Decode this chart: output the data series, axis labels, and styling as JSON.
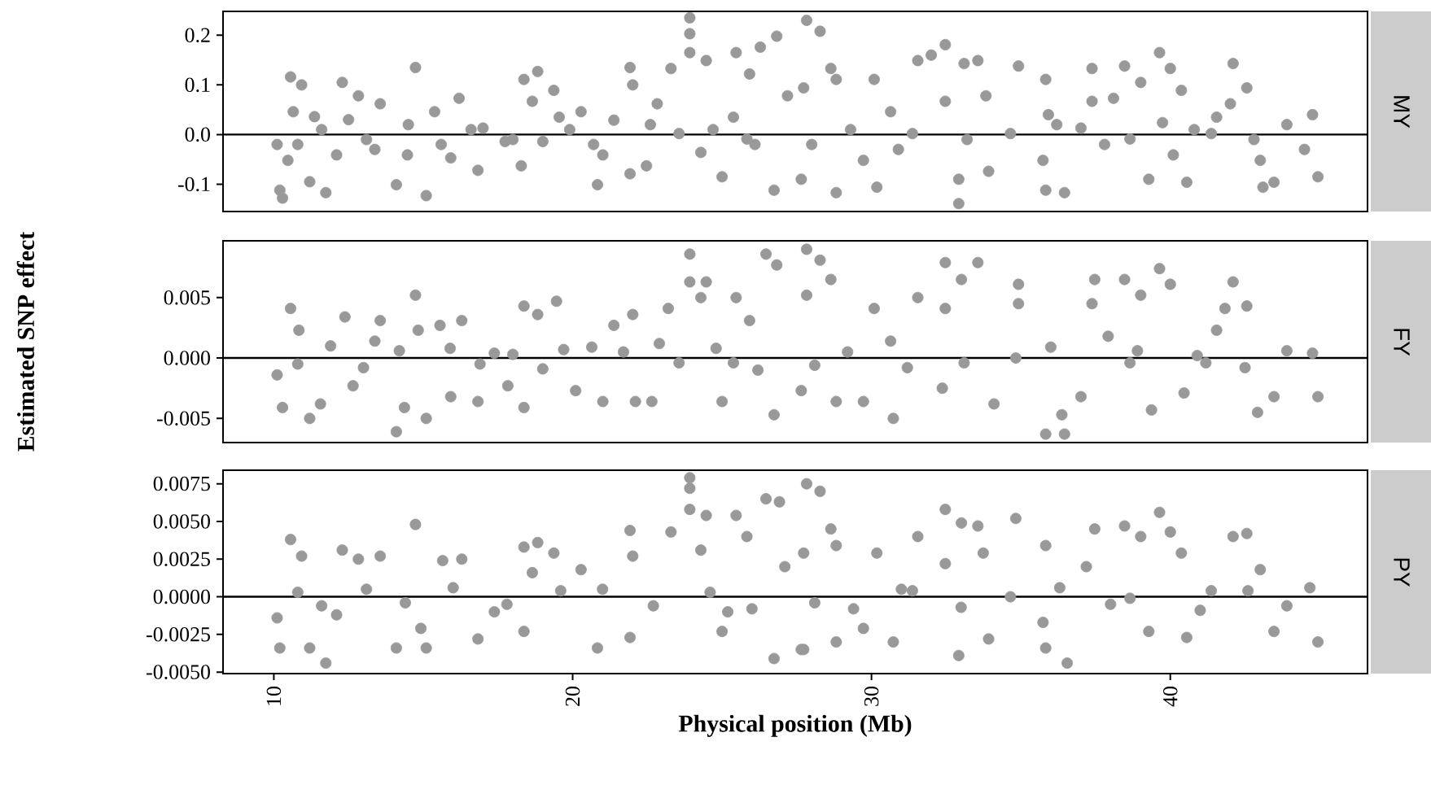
{
  "chart_data": [
    {
      "type": "scatter",
      "y2label": "MY",
      "color": "#999999",
      "marker": "circle",
      "grid": false,
      "tick_labels": "y",
      "xlim": [
        8.3,
        46.6
      ],
      "xticks": [
        10,
        20,
        30,
        40
      ],
      "ylim": [
        -0.155,
        0.248
      ],
      "yticks": [
        0.2,
        0.1,
        {
          "value": 0,
          "label": "0.0"
        },
        -0.1
      ],
      "ref_lines": [
        {
          "axis": "y",
          "value": 0,
          "color": "#000000"
        }
      ],
      "x": [
        10.56,
        10.93,
        10.2,
        10.29,
        11.2,
        11.74,
        10.65,
        11.36,
        10.47,
        10.11,
        12.29,
        12.83,
        12.1,
        13.38,
        13.56,
        14.74,
        14.1,
        15.1,
        14.47,
        15.38,
        16.2,
        16.83,
        15.92,
        17.0,
        17.74,
        18.28,
        18.37,
        18.83,
        19.37,
        18.65,
        19.55,
        19.0,
        20.28,
        20.83,
        21.38,
        21.92,
        22.01,
        21.92,
        21.01,
        22.47,
        22.83,
        23.29,
        23.92,
        23.92,
        23.92,
        24.47,
        24.29,
        25.0,
        25.47,
        25.92,
        26.28,
        26.83,
        26.74,
        27.65,
        27.83,
        28.28,
        27.19,
        25.38,
        23.56,
        25.83,
        28.64,
        28.82,
        27.73,
        28.82,
        30.18,
        30.09,
        30.64,
        29.73,
        31.55,
        32.47,
        32.0,
        33.1,
        33.56,
        32.47,
        32.92,
        32.92,
        33.92,
        33.83,
        34.92,
        35.83,
        35.92,
        35.83,
        36.46,
        35.74,
        37.38,
        38.47,
        37.38,
        38.1,
        39.01,
        39.64,
        40.0,
        40.37,
        39.28,
        40.55,
        40.1,
        42.1,
        42.56,
        42.01,
        43.1,
        43.47,
        43.01,
        44.76,
        44.94,
        44.49,
        41.37,
        38.65,
        37.01,
        34.65,
        31.37,
        41.55,
        39.74,
        10.8,
        11.6,
        12.5,
        13.1,
        14.5,
        15.6,
        16.6,
        18.0,
        19.9,
        20.7,
        22.6,
        24.7,
        26.1,
        28.0,
        29.3,
        30.9,
        33.2,
        36.2,
        37.8,
        40.8,
        42.8,
        43.9
      ],
      "values": [
        0.116,
        0.1,
        -0.112,
        -0.128,
        -0.095,
        -0.117,
        0.046,
        0.036,
        -0.052,
        -0.02,
        0.105,
        0.078,
        -0.041,
        -0.03,
        0.062,
        0.135,
        -0.101,
        -0.123,
        -0.041,
        0.046,
        0.073,
        -0.072,
        -0.047,
        0.013,
        -0.014,
        -0.063,
        0.111,
        0.127,
        0.089,
        0.067,
        0.035,
        -0.014,
        0.046,
        -0.101,
        0.029,
        0.135,
        0.1,
        -0.079,
        -0.041,
        -0.063,
        0.062,
        0.133,
        0.235,
        0.203,
        0.165,
        0.149,
        -0.036,
        -0.085,
        0.165,
        0.122,
        0.176,
        0.198,
        -0.112,
        -0.09,
        0.23,
        0.208,
        0.078,
        0.035,
        0.002,
        -0.009,
        0.133,
        0.111,
        0.094,
        -0.117,
        -0.106,
        0.111,
        0.046,
        -0.052,
        0.149,
        0.181,
        0.16,
        0.143,
        0.149,
        0.067,
        -0.139,
        -0.09,
        -0.074,
        0.078,
        0.138,
        0.111,
        0.04,
        -0.112,
        -0.117,
        -0.052,
        0.133,
        0.138,
        0.067,
        0.073,
        0.105,
        0.165,
        0.133,
        0.089,
        -0.09,
        -0.096,
        -0.041,
        0.143,
        0.094,
        0.062,
        -0.106,
        -0.096,
        -0.052,
        0.04,
        -0.085,
        -0.03,
        0.002,
        -0.009,
        0.013,
        0.002,
        0.002,
        0.035,
        0.024,
        -0.02,
        0.01,
        0.03,
        -0.01,
        0.02,
        -0.02,
        0.01,
        -0.01,
        0.01,
        -0.02,
        0.02,
        0.01,
        -0.02,
        -0.02,
        0.01,
        -0.03,
        -0.01,
        0.02,
        -0.02,
        0.01,
        -0.01,
        0.02
      ]
    },
    {
      "type": "scatter",
      "y2label": "FY",
      "ylabel": "Estimated SNP effect",
      "color": "#999999",
      "marker": "circle",
      "grid": false,
      "tick_labels": "y",
      "xlim": [
        8.3,
        46.6
      ],
      "xticks": [
        10,
        20,
        30,
        40
      ],
      "ylim": [
        -0.007,
        0.0097
      ],
      "yticks": [
        0.005,
        {
          "value": 0,
          "label": "0.000"
        },
        -0.005
      ],
      "ref_lines": [
        {
          "axis": "y",
          "value": 0,
          "color": "#000000"
        }
      ],
      "x": [
        10.56,
        10.29,
        11.2,
        11.56,
        10.11,
        10.84,
        12.38,
        12.65,
        13.38,
        13.56,
        14.74,
        14.1,
        14.37,
        15.1,
        14.83,
        15.56,
        16.29,
        15.92,
        16.83,
        17.38,
        17.83,
        18.37,
        18.37,
        19.46,
        18.83,
        19.0,
        20.1,
        20.64,
        21.01,
        21.38,
        22.01,
        22.1,
        22.65,
        23.2,
        23.56,
        23.92,
        23.92,
        24.47,
        24.29,
        25.0,
        25.47,
        25.92,
        26.47,
        26.83,
        26.74,
        27.83,
        28.28,
        27.83,
        27.65,
        25.38,
        28.64,
        28.82,
        29.73,
        30.09,
        30.73,
        30.64,
        31.55,
        32.47,
        33.56,
        33.01,
        32.47,
        32.37,
        34.1,
        34.92,
        34.92,
        35.83,
        36.46,
        36.37,
        37.01,
        37.47,
        38.47,
        37.38,
        39.01,
        39.64,
        40.0,
        39.37,
        40.46,
        42.1,
        42.56,
        41.83,
        42.92,
        43.47,
        44.94,
        44.76,
        41.19,
        38.65,
        34.83,
        41.55,
        37.92,
        10.8,
        11.9,
        13.0,
        14.2,
        15.9,
        16.9,
        18.0,
        19.7,
        21.7,
        22.9,
        24.8,
        26.2,
        28.1,
        29.2,
        31.2,
        33.1,
        36.0,
        38.9,
        40.9,
        42.5,
        43.9
      ],
      "values": [
        0.0041,
        -0.0041,
        -0.005,
        -0.0038,
        -0.0014,
        0.0023,
        0.0034,
        -0.0023,
        0.0014,
        0.0031,
        0.0052,
        -0.0061,
        -0.0041,
        -0.005,
        0.0023,
        0.0027,
        0.0031,
        -0.0032,
        -0.0036,
        0.0004,
        -0.0023,
        -0.0041,
        0.0043,
        0.0047,
        0.0036,
        -0.0009,
        -0.0027,
        0.0009,
        -0.0036,
        0.0027,
        0.0036,
        -0.0036,
        -0.0036,
        0.0041,
        -0.0004,
        0.0086,
        0.0063,
        0.0063,
        0.005,
        -0.0036,
        0.005,
        0.0031,
        0.0086,
        0.0077,
        -0.0047,
        0.009,
        0.0081,
        0.0052,
        -0.0027,
        -0.0004,
        0.0065,
        -0.0036,
        -0.0036,
        0.0041,
        -0.005,
        0.0014,
        0.005,
        0.0079,
        0.0079,
        0.0065,
        0.0041,
        -0.0025,
        -0.0038,
        0.0061,
        0.0045,
        -0.0063,
        -0.0063,
        -0.0047,
        -0.0032,
        0.0065,
        0.0065,
        0.0045,
        0.0052,
        0.0074,
        0.0061,
        -0.0043,
        -0.0029,
        0.0063,
        0.0043,
        0.0041,
        -0.0045,
        -0.0032,
        -0.0032,
        0.0004,
        -0.0004,
        -0.0004,
        0.0,
        0.0023,
        0.0018,
        -0.0005,
        0.001,
        -0.0008,
        0.0006,
        0.0008,
        -0.0005,
        0.0003,
        0.0007,
        0.0005,
        0.0012,
        0.0008,
        -0.001,
        -0.0006,
        0.0005,
        -0.0008,
        -0.0004,
        0.0009,
        0.0006,
        0.0002,
        -0.0008,
        0.0006
      ]
    },
    {
      "type": "scatter",
      "y2label": "PY",
      "xlabel": "Physical position (Mb)",
      "color": "#999999",
      "marker": "circle",
      "grid": false,
      "xlim": [
        8.3,
        46.6
      ],
      "xticks": [
        10,
        20,
        30,
        40
      ],
      "ylim": [
        -0.0051,
        0.0084
      ],
      "yticks": [
        0.0075,
        {
          "value": 0.005,
          "label": "0.0050"
        },
        0.0025,
        {
          "value": 0,
          "label": "0.0000"
        },
        -0.0025,
        {
          "value": -0.005,
          "label": "-0.0050"
        }
      ],
      "ref_lines": [
        {
          "axis": "y",
          "value": 0,
          "color": "#000000"
        }
      ],
      "x": [
        10.56,
        10.93,
        10.2,
        11.74,
        11.2,
        10.11,
        12.29,
        12.83,
        12.1,
        13.56,
        14.74,
        14.1,
        15.1,
        14.92,
        15.65,
        16.29,
        16.83,
        17.38,
        18.37,
        18.37,
        18.83,
        19.37,
        18.65,
        20.28,
        20.83,
        21.92,
        21.92,
        22.01,
        23.29,
        23.92,
        23.92,
        23.92,
        24.47,
        24.29,
        25.0,
        25.47,
        25.83,
        26.47,
        26.92,
        26.74,
        27.65,
        27.83,
        28.28,
        27.1,
        25.19,
        28.64,
        28.82,
        27.73,
        27.73,
        28.82,
        30.18,
        30.73,
        29.73,
        31.55,
        32.47,
        33.01,
        33.56,
        32.47,
        32.92,
        33.92,
        33.74,
        34.83,
        35.83,
        35.83,
        36.55,
        35.74,
        37.47,
        38.47,
        37.19,
        39.01,
        39.64,
        40.0,
        40.37,
        39.28,
        40.55,
        42.1,
        42.56,
        43.01,
        43.47,
        44.94,
        44.67,
        41.37,
        38.65,
        34.65,
        31.37,
        10.8,
        11.6,
        13.1,
        14.4,
        16.0,
        17.8,
        19.6,
        21.0,
        22.7,
        24.6,
        26.0,
        28.1,
        29.4,
        31.0,
        33.0,
        36.3,
        38.0,
        41.0,
        42.6,
        43.9
      ],
      "values": [
        0.0038,
        0.0027,
        -0.0034,
        -0.0044,
        -0.0034,
        -0.0014,
        0.0031,
        0.0025,
        -0.0012,
        0.0027,
        0.0048,
        -0.0034,
        -0.0034,
        -0.0021,
        0.0024,
        0.0025,
        -0.0028,
        -0.001,
        -0.0023,
        0.0033,
        0.0036,
        0.0029,
        0.0016,
        0.0018,
        -0.0034,
        -0.0027,
        0.0044,
        0.0027,
        0.0043,
        0.0079,
        0.0072,
        0.0058,
        0.0054,
        0.0031,
        -0.0023,
        0.0054,
        0.004,
        0.0065,
        0.0063,
        -0.0041,
        -0.0035,
        0.0075,
        0.007,
        0.002,
        -0.001,
        0.0045,
        0.0034,
        0.0029,
        -0.0035,
        -0.003,
        0.0029,
        -0.003,
        -0.0021,
        0.004,
        0.0058,
        0.0049,
        0.0047,
        0.0022,
        -0.0039,
        -0.0028,
        0.0029,
        0.0052,
        0.0034,
        -0.0034,
        -0.0044,
        -0.0017,
        0.0045,
        0.0047,
        0.002,
        0.004,
        0.0056,
        0.0043,
        0.0029,
        -0.0023,
        -0.0027,
        0.004,
        0.0042,
        0.0018,
        -0.0023,
        -0.003,
        0.0006,
        0.0004,
        -0.0001,
        0.0,
        0.0004,
        0.0003,
        -0.0006,
        0.0005,
        -0.0004,
        0.0006,
        -0.0005,
        0.0004,
        0.0005,
        -0.0006,
        0.0003,
        -0.0008,
        -0.0004,
        -0.0008,
        0.0005,
        -0.0007,
        0.0006,
        -0.0005,
        -0.0009,
        0.0004,
        -0.0006
      ]
    }
  ]
}
